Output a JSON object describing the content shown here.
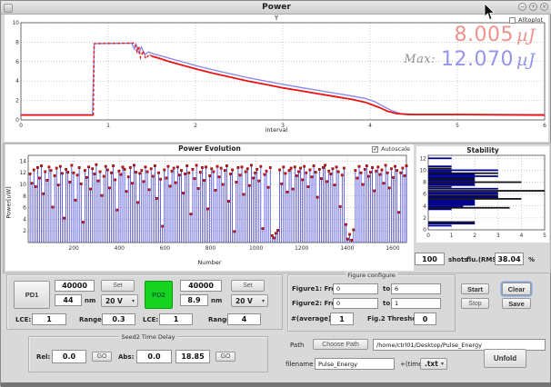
{
  "window": {
    "title": "Power"
  },
  "figure1": {
    "alltoplot_label": "Alltoplot",
    "current_value": "8.005",
    "current_unit": "µJ",
    "max_label": "Max:",
    "max_value": "12.070",
    "max_unit": "µJ",
    "colors": {
      "current": "#f0938e",
      "max": "#9595e8",
      "max_label": "#909090"
    }
  },
  "evolution": {
    "autoscale_label": "Autoscale"
  },
  "stability_row": {
    "shots_value": "100",
    "shots_label": "shots",
    "rms_label": "flu.(RMS):",
    "rms_value": "38.04",
    "percent_label": "%"
  },
  "pd_panel": {
    "pd1": {
      "button": "PD1",
      "counts": "40000",
      "set_label": "Set",
      "nm_value": "44",
      "nm_label": "nm",
      "voltage": "20 V",
      "lce_label": "LCE:",
      "lce_value": "1",
      "range_label": "Range:",
      "range_value": "0.3"
    },
    "pd2": {
      "button": "PD2",
      "counts": "40000",
      "set_label": "Set",
      "nm_value": "8.9",
      "nm_label": "nm",
      "voltage": "20 V",
      "lce_label": "LCE:",
      "lce_value": "1",
      "range_label": "Range:",
      "range_value": "4",
      "color": "#16d31f"
    }
  },
  "figure_config": {
    "title": "Figure configure",
    "fig1_from_label": "Figure1: From",
    "fig1_from": "0",
    "to_label": "to",
    "fig1_to": "6",
    "fig2_from_label": "Figure2: From",
    "fig2_from": "0",
    "fig2_to": "1",
    "average_label": "#(average):",
    "average_value": "1",
    "threshold_label": "Fig.2 Threshold:",
    "threshold_value": "0"
  },
  "actions": {
    "start": "Start",
    "stop": "Stop",
    "clear": "Clear",
    "save": "Save"
  },
  "seed2": {
    "title": "Seed2 Time Delay",
    "rel_label": "Rel:",
    "rel_value": "0.0",
    "go_label": "GO",
    "abs_label": "Abs:",
    "abs_value": "0.0",
    "abs_current": "18.85"
  },
  "path_section": {
    "path_label": "Path",
    "choose_button": "Choose Path",
    "path_value": "/home/ctrl01/Desktop/Pulse_Energy",
    "filename_label": "filename",
    "filename_value": "Pulse_Energy",
    "time_label": "+(time)",
    "ext_value": ".txt",
    "unfold_button": "Unfold"
  },
  "chart_data": [
    {
      "type": "line",
      "title": "Y",
      "xlabel": "interval",
      "xlim": [
        0,
        6
      ],
      "ylim": [
        0,
        10
      ],
      "xticks": [
        0,
        1,
        2,
        3,
        4,
        5,
        6
      ],
      "yticks": [
        0,
        2,
        4,
        6,
        8,
        10
      ],
      "grid": true,
      "legend": null,
      "series": [
        {
          "name": "max-energy-blue",
          "color": "#8585e8",
          "width": 1.3,
          "dash": null,
          "points": [
            [
              0,
              0.55
            ],
            [
              0.82,
              0.55
            ],
            [
              0.84,
              7.85
            ],
            [
              1.27,
              7.9
            ],
            [
              1.3,
              7.3
            ],
            [
              1.32,
              7.8
            ],
            [
              1.35,
              6.9
            ],
            [
              1.38,
              7.5
            ],
            [
              1.42,
              6.7
            ],
            [
              1.46,
              7.0
            ],
            [
              1.5,
              6.85
            ],
            [
              1.6,
              6.6
            ],
            [
              1.7,
              6.35
            ],
            [
              1.8,
              6.1
            ],
            [
              1.9,
              5.85
            ],
            [
              2.0,
              5.6
            ],
            [
              2.2,
              5.15
            ],
            [
              2.4,
              4.75
            ],
            [
              2.6,
              4.35
            ],
            [
              2.8,
              4.0
            ],
            [
              3.0,
              3.65
            ],
            [
              3.2,
              3.35
            ],
            [
              3.4,
              3.05
            ],
            [
              3.6,
              2.75
            ],
            [
              3.8,
              2.45
            ],
            [
              3.95,
              2.2
            ],
            [
              4.05,
              1.9
            ],
            [
              4.15,
              1.4
            ],
            [
              4.25,
              0.95
            ],
            [
              4.35,
              0.65
            ],
            [
              4.5,
              0.58
            ],
            [
              6.0,
              0.55
            ]
          ]
        },
        {
          "name": "current-energy-red-baseline",
          "color": "#ee1111",
          "width": 1.6,
          "dash": null,
          "points": [
            [
              0,
              0.5
            ],
            [
              0.83,
              0.5
            ]
          ]
        },
        {
          "name": "current-energy-red-plateau",
          "color": "#ee1111",
          "width": 1.3,
          "dash": "3,2.2",
          "points": [
            [
              0.83,
              0.5
            ],
            [
              0.84,
              7.85
            ],
            [
              1.3,
              7.9
            ],
            [
              1.33,
              7.0
            ],
            [
              1.35,
              7.6
            ],
            [
              1.37,
              6.4
            ],
            [
              1.4,
              7.1
            ],
            [
              1.43,
              6.3
            ],
            [
              1.47,
              6.75
            ],
            [
              1.5,
              6.55
            ]
          ]
        },
        {
          "name": "current-energy-red-decay",
          "color": "#ee1111",
          "width": 1.8,
          "dash": null,
          "points": [
            [
              1.5,
              6.55
            ],
            [
              1.6,
              6.3
            ],
            [
              1.7,
              6.0
            ],
            [
              1.8,
              5.75
            ],
            [
              1.9,
              5.5
            ],
            [
              2.0,
              5.25
            ],
            [
              2.2,
              4.8
            ],
            [
              2.4,
              4.4
            ],
            [
              2.6,
              4.0
            ],
            [
              2.8,
              3.65
            ],
            [
              3.0,
              3.3
            ],
            [
              3.2,
              3.0
            ],
            [
              3.4,
              2.7
            ],
            [
              3.6,
              2.4
            ],
            [
              3.8,
              2.1
            ],
            [
              3.95,
              1.8
            ],
            [
              4.1,
              1.3
            ],
            [
              4.2,
              0.9
            ],
            [
              4.3,
              0.65
            ],
            [
              4.45,
              0.55
            ],
            [
              5.0,
              0.55
            ],
            [
              6.0,
              0.5
            ]
          ]
        }
      ]
    },
    {
      "type": "stem",
      "title": "Power Evolution",
      "xlabel": "Number",
      "ylabel": "Power[uW]",
      "xlim": [
        0,
        1660
      ],
      "ylim": [
        0,
        15
      ],
      "xticks": [
        200,
        400,
        600,
        800,
        1000,
        1200,
        1400,
        1600
      ],
      "yticks": [
        2,
        4,
        6,
        8,
        10,
        12,
        14
      ],
      "x_step": 8.3,
      "stem_color": "#2a2ad0",
      "marker_color": "#dd1111",
      "marker_edge": "#550000",
      "values": [
        11.8,
        10.2,
        12.5,
        9.6,
        12.9,
        11.1,
        13.2,
        8.4,
        12.2,
        10.7,
        13.0,
        12.4,
        6.1,
        11.5,
        12.8,
        9.9,
        13.1,
        11.9,
        4.2,
        12.6,
        12.1,
        10.4,
        13.3,
        12.0,
        7.3,
        11.6,
        12.9,
        10.1,
        3.5,
        12.4,
        11.2,
        13.0,
        9.2,
        12.7,
        11.8,
        13.4,
        10.6,
        12.2,
        8.1,
        11.4,
        13.1,
        12.5,
        9.4,
        12.0,
        13.2,
        10.8,
        5.6,
        12.3,
        11.7,
        13.0,
        12.6,
        8.8,
        11.3,
        12.9,
        10.2,
        13.3,
        12.1,
        6.9,
        11.9,
        12.4,
        10.5,
        13.0,
        12.2,
        9.1,
        12.7,
        11.4,
        13.2,
        7.6,
        12.0,
        10.9,
        2.8,
        12.5,
        11.1,
        13.1,
        9.7,
        12.3,
        12.8,
        10.3,
        13.0,
        11.6,
        12.4,
        8.5,
        11.8,
        13.2,
        12.0,
        4.9,
        12.6,
        11.0,
        13.3,
        9.3,
        12.1,
        12.9,
        10.7,
        13.0,
        5.8,
        11.5,
        12.7,
        12.2,
        9.0,
        13.1,
        11.3,
        12.8,
        10.0,
        12.4,
        13.2,
        7.1,
        11.8,
        12.5,
        1.9,
        10.4,
        12.9,
        11.6,
        13.0,
        8.3,
        12.2,
        12.7,
        9.8,
        13.3,
        11.1,
        12.0,
        12.6,
        10.6,
        13.1,
        2.4,
        11.7,
        12.3,
        9.5,
        12.9,
        1.2,
        0.8,
        1.6,
        2.1,
        12.5,
        10.1,
        13.0,
        11.9,
        8.7,
        12.4,
        12.8,
        9.2,
        13.0,
        11.5,
        12.2,
        12.8,
        10.8,
        13.1,
        12.0,
        9.6,
        12.5,
        11.3,
        13.2,
        12.1,
        7.8,
        12.6,
        11.0,
        12.9,
        13.3,
        10.5,
        12.3,
        11.8,
        12.7,
        9.9,
        13.0,
        12.2,
        6.2,
        11.6,
        12.8,
        3.1,
        0.6,
        1.4,
        0.4,
        2.2,
        12.4,
        11.1,
        13.1,
        12.0,
        10.0,
        12.6,
        13.2,
        11.4,
        12.1,
        12.9,
        8.9,
        12.3,
        13.0,
        11.7,
        12.5,
        10.2,
        13.3,
        12.0,
        9.4,
        12.7,
        11.2,
        13.1,
        12.4,
        5.2,
        12.0,
        12.8,
        11.5,
        13.2
      ]
    },
    {
      "type": "barh",
      "title": "Stability",
      "xlim": [
        0,
        5
      ],
      "ylim": [
        0,
        12.5
      ],
      "xticks": [
        0,
        1,
        2,
        3,
        4,
        5
      ],
      "yticks": [
        0,
        2,
        4,
        6,
        8,
        10,
        12
      ],
      "colors": {
        "n": "#00008b",
        "k": "#141414"
      },
      "bars": [
        {
          "y": 12.0,
          "len": 1.0,
          "c": "n"
        },
        {
          "y": 10.65,
          "len": 1.0,
          "c": "n"
        },
        {
          "y": 10.3,
          "len": 1.0,
          "c": "k"
        },
        {
          "y": 10.0,
          "len": 3.0,
          "c": "n"
        },
        {
          "y": 9.75,
          "len": 1.0,
          "c": "n"
        },
        {
          "y": 9.5,
          "len": 3.0,
          "c": "k"
        },
        {
          "y": 9.25,
          "len": 2.0,
          "c": "n"
        },
        {
          "y": 9.0,
          "len": 3.0,
          "c": "n"
        },
        {
          "y": 8.75,
          "len": 2.0,
          "c": "n"
        },
        {
          "y": 8.5,
          "len": 2.0,
          "c": "k"
        },
        {
          "y": 8.25,
          "len": 2.0,
          "c": "n"
        },
        {
          "y": 8.0,
          "len": 4.0,
          "c": "k"
        },
        {
          "y": 7.75,
          "len": 2.0,
          "c": "n"
        },
        {
          "y": 7.5,
          "len": 2.0,
          "c": "n"
        },
        {
          "y": 7.2,
          "len": 1.0,
          "c": "k"
        },
        {
          "y": 6.9,
          "len": 3.0,
          "c": "n"
        },
        {
          "y": 6.55,
          "len": 5.0,
          "c": "k"
        },
        {
          "y": 6.25,
          "len": 3.0,
          "c": "n"
        },
        {
          "y": 6.0,
          "len": 3.0,
          "c": "n"
        },
        {
          "y": 5.7,
          "len": 3.0,
          "c": "k"
        },
        {
          "y": 5.45,
          "len": 3.0,
          "c": "n"
        },
        {
          "y": 5.2,
          "len": 4.0,
          "c": "k"
        },
        {
          "y": 4.95,
          "len": 2.0,
          "c": "n"
        },
        {
          "y": 4.7,
          "len": 2.0,
          "c": "n"
        },
        {
          "y": 4.45,
          "len": 2.0,
          "c": "n"
        },
        {
          "y": 4.2,
          "len": 2.0,
          "c": "n"
        },
        {
          "y": 3.95,
          "len": 1.5,
          "c": "n"
        },
        {
          "y": 3.7,
          "len": 3.5,
          "c": "k"
        },
        {
          "y": 3.45,
          "len": 1.0,
          "c": "n"
        },
        {
          "y": 1.3,
          "len": 2.0,
          "c": "k"
        },
        {
          "y": 1.05,
          "len": 2.0,
          "c": "n"
        },
        {
          "y": 0.7,
          "len": 1.0,
          "c": "n"
        }
      ]
    }
  ]
}
